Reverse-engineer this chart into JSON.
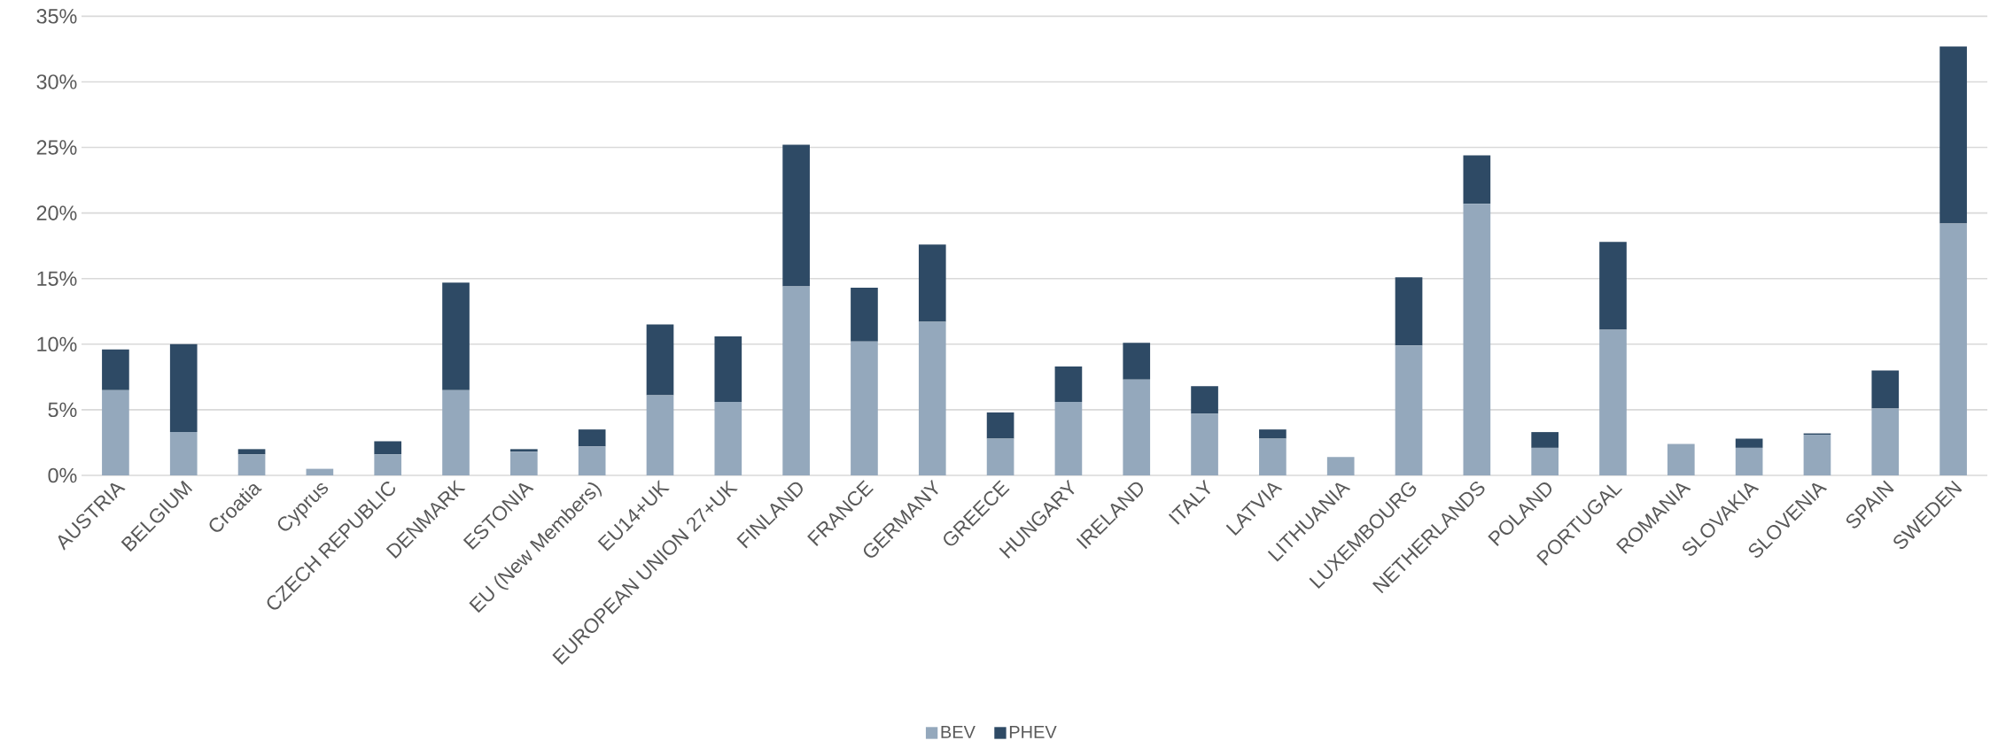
{
  "chart_data": {
    "type": "bar",
    "stacked": true,
    "categories": [
      "AUSTRIA",
      "BELGIUM",
      "Croatia",
      "Cyprus",
      "CZECH REPUBLIC",
      "DENMARK",
      "ESTONIA",
      "EU (New Members)",
      "EU14+UK",
      "EUROPEAN UNION 27+UK",
      "FINLAND",
      "FRANCE",
      "GERMANY",
      "GREECE",
      "HUNGARY",
      "IRELAND",
      "ITALY",
      "LATVIA",
      "LITHUANIA",
      "LUXEMBOURG",
      "NETHERLANDS",
      "POLAND",
      "PORTUGAL",
      "ROMANIA",
      "SLOVAKIA",
      "SLOVENIA",
      "SPAIN",
      "SWEDEN"
    ],
    "series": [
      {
        "name": "BEV",
        "color": "#94a8bc",
        "values": [
          6.5,
          3.3,
          1.6,
          0.5,
          1.6,
          6.5,
          1.8,
          2.2,
          6.1,
          5.6,
          14.4,
          10.2,
          11.7,
          2.8,
          5.6,
          7.3,
          4.7,
          2.8,
          1.4,
          9.9,
          20.7,
          2.1,
          11.1,
          2.4,
          2.1,
          3.1,
          5.1,
          19.2
        ]
      },
      {
        "name": "PHEV",
        "color": "#2e4a65",
        "values": [
          3.1,
          6.7,
          0.4,
          0,
          1.0,
          8.2,
          0.2,
          1.3,
          5.4,
          5.0,
          10.8,
          4.1,
          5.9,
          2.0,
          2.7,
          2.8,
          2.1,
          0.7,
          0,
          5.2,
          3.7,
          1.2,
          6.7,
          0,
          0.7,
          0.1,
          2.9,
          13.5
        ]
      }
    ],
    "ylim": [
      0,
      35
    ],
    "yticks": [
      {
        "value": 0,
        "label": "0%"
      },
      {
        "value": 5,
        "label": "5%"
      },
      {
        "value": 10,
        "label": "10%"
      },
      {
        "value": 15,
        "label": "15%"
      },
      {
        "value": 20,
        "label": "20%"
      },
      {
        "value": 25,
        "label": "25%"
      },
      {
        "value": 30,
        "label": "30%"
      },
      {
        "value": 35,
        "label": "35%"
      }
    ],
    "grid": "y",
    "legend": "bottom"
  }
}
